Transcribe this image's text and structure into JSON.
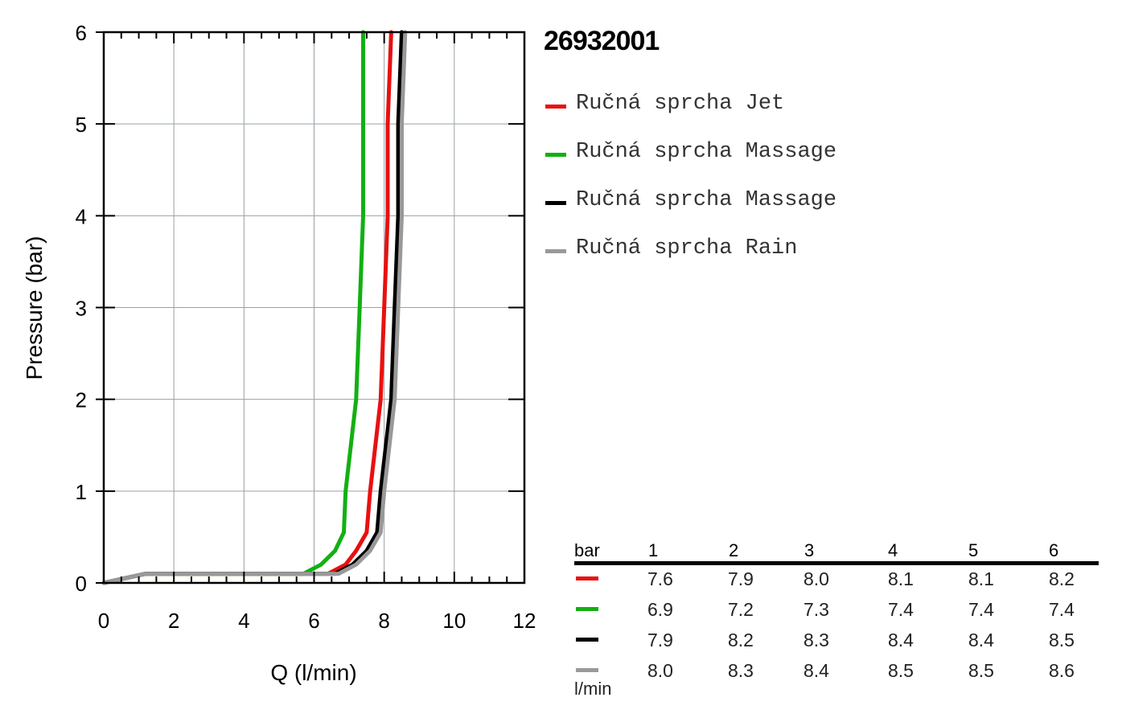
{
  "chart_data": {
    "type": "line",
    "title": "26932001",
    "xlabel": "Q (l/min)",
    "ylabel": "Pressure (bar)",
    "xlim": [
      0,
      12
    ],
    "ylim": [
      0,
      6
    ],
    "xticks": [
      "0",
      "2",
      "4",
      "6",
      "8",
      "10",
      "12"
    ],
    "yticks": [
      "0",
      "1",
      "2",
      "3",
      "4",
      "5",
      "6"
    ],
    "grid": true,
    "legend_position": "right",
    "series": [
      {
        "name": "Ručná sprcha Jet",
        "color": "#e81010",
        "x": [
          0,
          1.2,
          6.4,
          6.9,
          7.2,
          7.5,
          7.6,
          7.9,
          8.0,
          8.1,
          8.1,
          8.2
        ],
        "y": [
          0,
          0.1,
          0.1,
          0.2,
          0.35,
          0.55,
          1,
          2,
          3,
          4,
          5,
          6
        ]
      },
      {
        "name": "Ručná sprcha Massage",
        "color": "#12b012",
        "x": [
          0,
          1.2,
          5.7,
          6.2,
          6.6,
          6.85,
          6.9,
          7.2,
          7.3,
          7.4,
          7.4,
          7.4
        ],
        "y": [
          0,
          0.1,
          0.1,
          0.2,
          0.35,
          0.55,
          1,
          2,
          3,
          4,
          5,
          6
        ]
      },
      {
        "name": "Ručná sprcha Massage",
        "color": "#000000",
        "x": [
          0,
          1.2,
          6.6,
          7.1,
          7.5,
          7.8,
          7.9,
          8.2,
          8.3,
          8.4,
          8.4,
          8.5
        ],
        "y": [
          0,
          0.1,
          0.1,
          0.2,
          0.35,
          0.55,
          1,
          2,
          3,
          4,
          5,
          6
        ]
      },
      {
        "name": "Ručná sprcha Rain",
        "color": "#999999",
        "x": [
          0,
          1.2,
          6.7,
          7.2,
          7.6,
          7.9,
          8.0,
          8.3,
          8.4,
          8.5,
          8.5,
          8.6
        ],
        "y": [
          0,
          0.1,
          0.1,
          0.2,
          0.35,
          0.55,
          1,
          2,
          3,
          4,
          5,
          6
        ]
      }
    ],
    "table": {
      "header_label": "bar",
      "unit_label": "l/min",
      "columns": [
        "1",
        "2",
        "3",
        "4",
        "5",
        "6"
      ],
      "rows": [
        [
          "7.6",
          "7.9",
          "8.0",
          "8.1",
          "8.1",
          "8.2"
        ],
        [
          "6.9",
          "7.2",
          "7.3",
          "7.4",
          "7.4",
          "7.4"
        ],
        [
          "7.9",
          "8.2",
          "8.3",
          "8.4",
          "8.4",
          "8.5"
        ],
        [
          "8.0",
          "8.3",
          "8.4",
          "8.5",
          "8.5",
          "8.6"
        ]
      ]
    }
  }
}
